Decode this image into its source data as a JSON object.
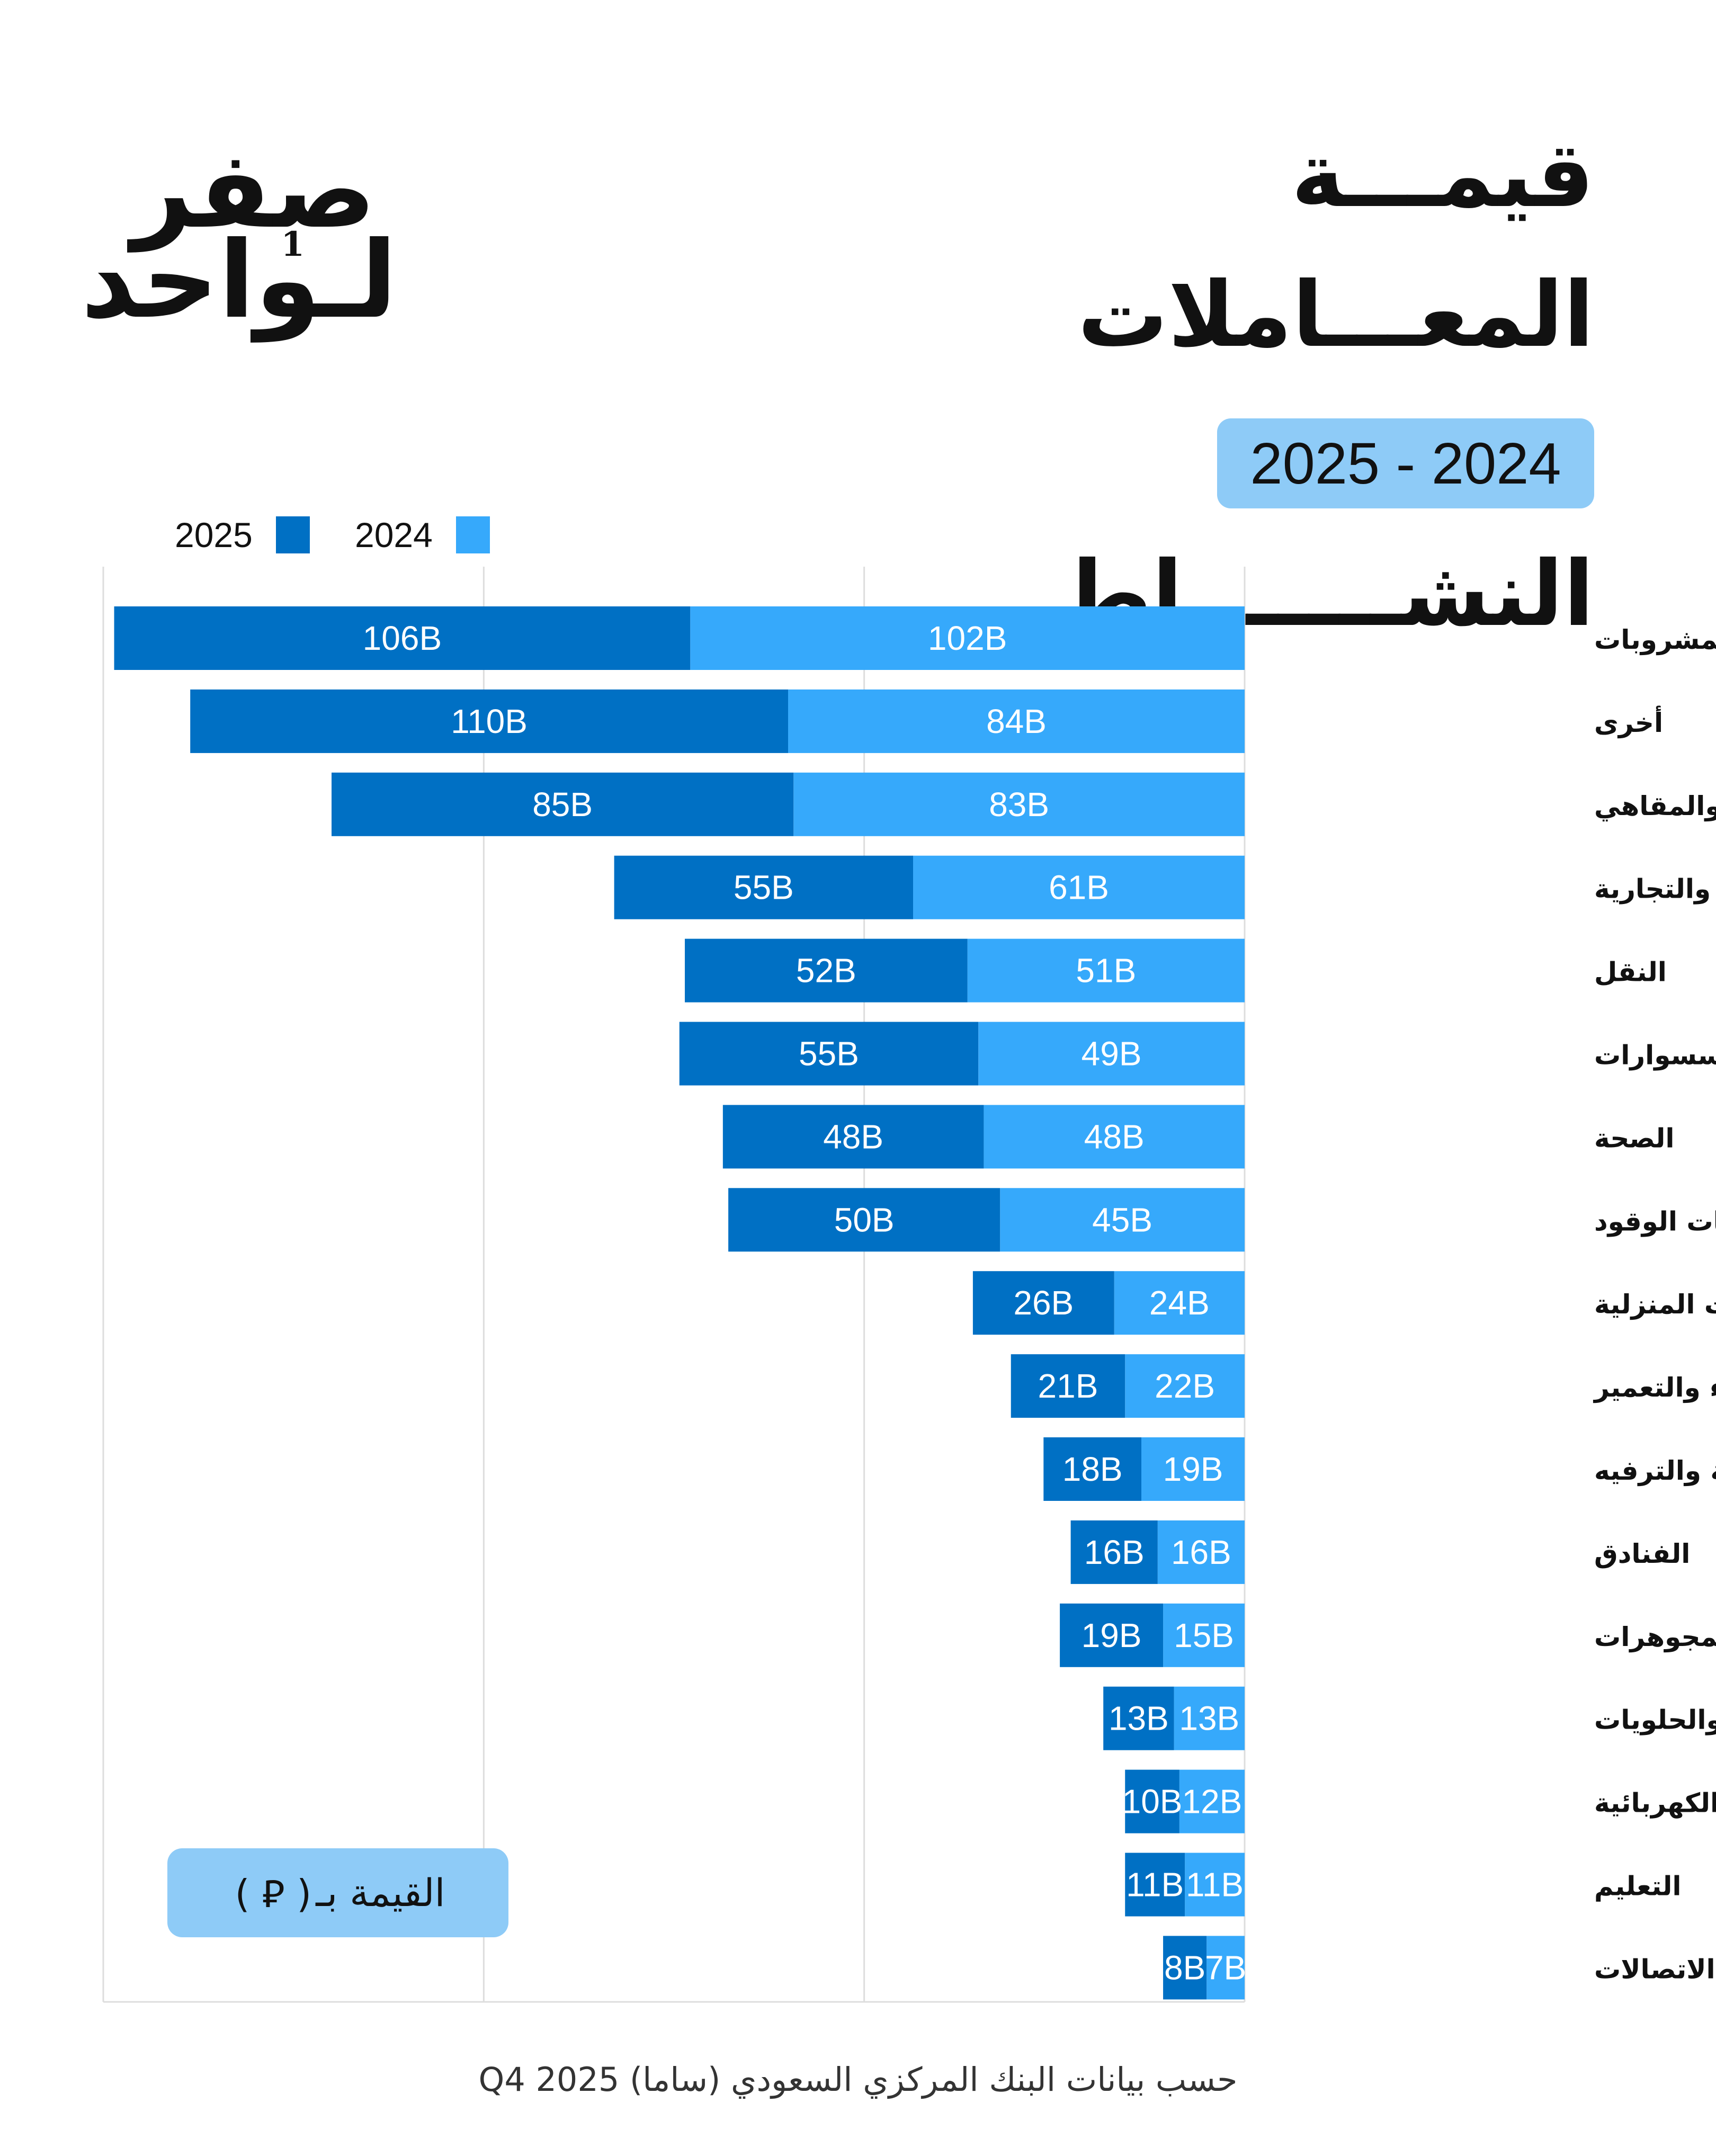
{
  "logo": {
    "line1": "صفر",
    "line2": "لـواحد",
    "digit": "1"
  },
  "title": {
    "line1": "قيمـــة المعـــاملات",
    "line2": "حسـب النشـــــــاط"
  },
  "period_badge": "2025 - 2024",
  "legend": {
    "series_2025": "2025",
    "series_2024": "2024"
  },
  "unit_label": {
    "text": "القيمة بـ",
    "currency_symbol": "( ⃁ )"
  },
  "source": "حسب بيانات البنك المركزي السعودي (ساما) Q4 2025",
  "colors": {
    "series_2025": "#0070c4",
    "series_2024": "#36a9fb",
    "badge_bg": "#8ecbf7",
    "gridline": "#dddddd"
  },
  "chart_data": {
    "type": "bar",
    "orientation": "horizontal",
    "stacked": true,
    "categories": [
      "الأطعمة والمشروبات",
      "أخرى",
      "المطاعم والمقاهي",
      "الخدمات المهنية والتجارية",
      "النقل",
      "الملبوسات والإكسسوارات",
      "الصحة",
      "محطات الوقود",
      "الأثاث والمستلزمات المنزلية",
      "مواد البناء والتعمير",
      "الثقافة والترفيه",
      "الفنادق",
      "المجوهرات",
      "المخبوزات والحلويات",
      "الأجهزة الإلكترونية والكهربائية",
      "التعليم",
      "الاتصالات"
    ],
    "series": [
      {
        "name": "2024",
        "values": [
          102,
          84,
          83,
          61,
          51,
          49,
          48,
          45,
          24,
          22,
          19,
          16,
          15,
          13,
          12,
          11,
          7
        ],
        "labels": [
          "102B",
          "84B",
          "83B",
          "61B",
          "51B",
          "49B",
          "48B",
          "45B",
          "24B",
          "22B",
          "19B",
          "16B",
          "15B",
          "13B",
          "12B",
          "11B",
          "7B"
        ]
      },
      {
        "name": "2025",
        "values": [
          106,
          110,
          85,
          55,
          52,
          55,
          48,
          50,
          26,
          21,
          18,
          16,
          19,
          13,
          10,
          11,
          8
        ],
        "labels": [
          "106B",
          "110B",
          "85B",
          "55B",
          "52B",
          "55B",
          "48B",
          "50B",
          "26B",
          "21B",
          "18B",
          "16B",
          "19B",
          "13B",
          "10B",
          "11B",
          "8B"
        ]
      }
    ],
    "value_unit": "B",
    "xlim": [
      0,
      210
    ],
    "grid": true,
    "legend_position": "top-left"
  }
}
